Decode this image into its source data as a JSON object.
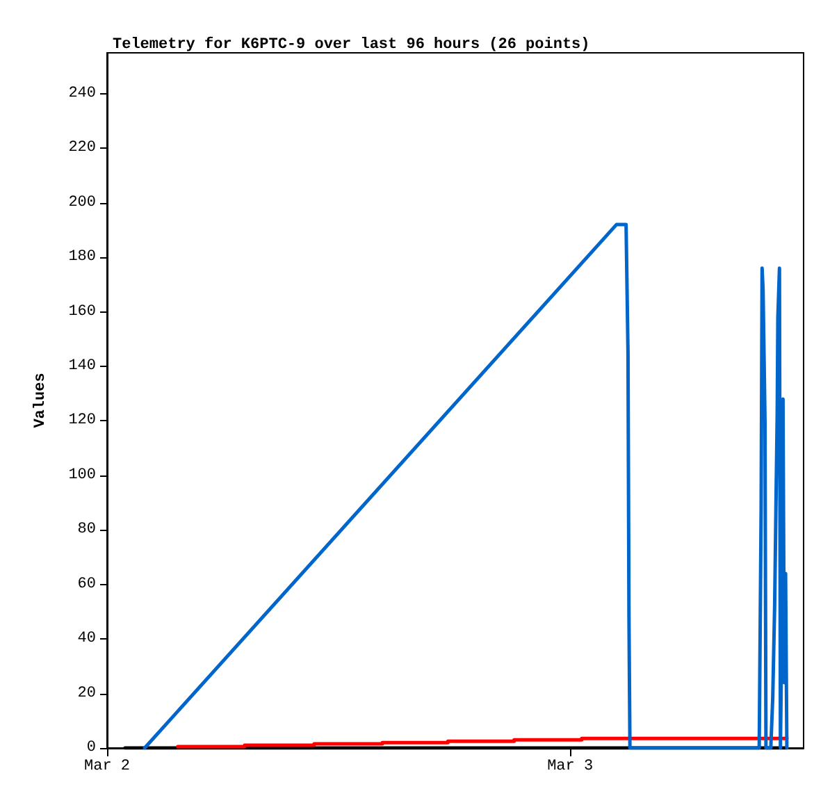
{
  "chart_data": {
    "type": "line",
    "title": "Telemetry for K6PTC-9 over last 96 hours (26 points)",
    "ylabel": "Values",
    "xlim": [
      "--03-02",
      "--03-03T12:06"
    ],
    "xticks": [
      {
        "value": "--03-02",
        "label": "Mar 2"
      },
      {
        "value": "--03-03",
        "label": "Mar 3"
      }
    ],
    "ylim": [
      0,
      255
    ],
    "yticks": [
      0,
      20,
      40,
      60,
      80,
      100,
      120,
      140,
      160,
      180,
      200,
      220,
      240
    ],
    "grid": false,
    "marker": "none",
    "line_style": "solid",
    "series": [
      {
        "color": "#000000",
        "x": [
          "--03-02T00:56",
          "--03-03T11:14"
        ],
        "values": [
          0,
          0
        ]
      },
      {
        "type": "step",
        "color": "#ff0000",
        "x": [
          "--03-02T03:40",
          "--03-02T07:08",
          "--03-02T10:44",
          "--03-02T14:16",
          "--03-02T17:40",
          "--03-02T21:06",
          "--03-03T00:36",
          "--03-03T11:14"
        ],
        "values": [
          0.5,
          1,
          1.5,
          2,
          2.5,
          3,
          3.5,
          3.5
        ]
      },
      {
        "color": "#0066cc",
        "x": [
          "--03-02T01:57",
          "--03-03T02:24",
          "--03-03T02:54",
          "--03-03T03:00",
          "--03-03T03:03",
          "--03-03T03:06",
          "--03-03T09:48",
          "--03-03T09:54",
          "--03-03T09:57",
          "--03-03T10:00",
          "--03-03T10:06",
          "--03-03T10:09",
          "--03-03T10:24",
          "--03-03T10:30",
          "--03-03T10:36",
          "--03-03T10:40",
          "--03-03T10:44",
          "--03-03T10:46",
          "--03-03T10:51",
          "--03-03T10:54",
          "--03-03T10:58",
          "--03-03T11:02",
          "--03-03T11:06",
          "--03-03T11:10",
          "--03-03T11:14"
        ],
        "values": [
          0,
          192,
          192,
          145,
          48,
          0,
          0,
          88,
          176,
          168,
          120,
          0,
          0,
          18,
          52,
          88,
          123,
          158,
          176,
          0,
          40,
          128,
          24,
          64,
          0
        ]
      }
    ]
  }
}
